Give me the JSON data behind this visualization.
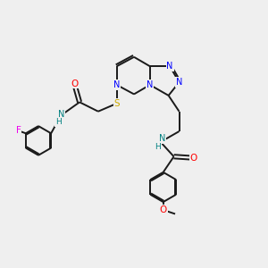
{
  "bg_color": "#efefef",
  "bond_color": "#1a1a1a",
  "bond_width": 1.4,
  "atom_colors": {
    "N": "#0000ff",
    "O": "#ff0000",
    "S": "#ccaa00",
    "F": "#ee00ee",
    "NH": "#008080",
    "C": "#1a1a1a"
  },
  "figsize": [
    3.0,
    3.0
  ],
  "dpi": 100,
  "xlim": [
    0,
    10
  ],
  "ylim": [
    0,
    10
  ]
}
